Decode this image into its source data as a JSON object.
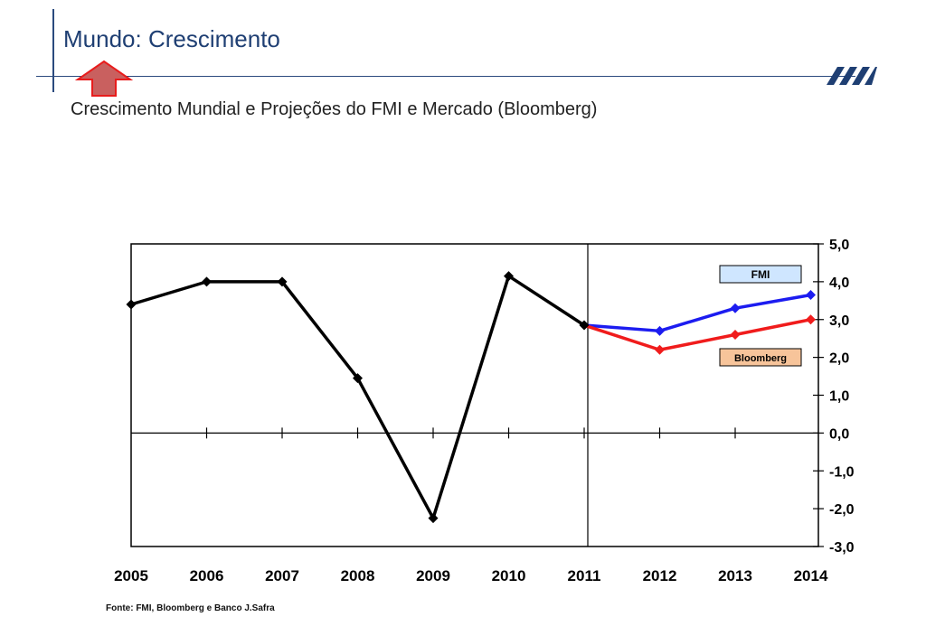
{
  "header": {
    "title": "Mundo: Crescimento",
    "subtitle": "Crescimento Mundial e Projeções do FMI e Mercado (Bloomberg)"
  },
  "colors": {
    "brand_blue": "#1f3f73",
    "historical": "#000000",
    "fmi": "#1c1cf0",
    "bloomberg": "#f01c1c",
    "fmi_label_bg": "#cfe6ff",
    "bloomberg_label_bg": "#f7c49a",
    "arrow_fill": "#c9605f",
    "arrow_stroke": "#e81c1c"
  },
  "icons": {
    "arrow": "up-arrow-icon",
    "logo": "safra-stripes-logo-icon"
  },
  "chart_data": {
    "type": "line",
    "x": [
      "2005",
      "2006",
      "2007",
      "2008",
      "2009",
      "2010",
      "2011",
      "2012",
      "2013",
      "2014"
    ],
    "ylim": [
      -3.0,
      5.0
    ],
    "yticks": [
      "5,0",
      "4,0",
      "3,0",
      "2,0",
      "1,0",
      "0,0",
      "-1,0",
      "-2,0",
      "-3,0"
    ],
    "y_axis_position": "right",
    "grid": false,
    "series": [
      {
        "key": "historico",
        "x": [
          "2005",
          "2006",
          "2007",
          "2008",
          "2009",
          "2010",
          "2011"
        ],
        "values": [
          3.4,
          4.0,
          4.0,
          1.45,
          -2.25,
          4.15,
          2.85
        ]
      },
      {
        "key": "fmi",
        "name": "FMI",
        "x": [
          "2011",
          "2012",
          "2013",
          "2014"
        ],
        "values": [
          2.85,
          2.7,
          3.3,
          3.65
        ]
      },
      {
        "key": "bloomberg",
        "name": "Bloomberg",
        "x": [
          "2011",
          "2012",
          "2013",
          "2014"
        ],
        "values": [
          2.85,
          2.2,
          2.6,
          3.0
        ]
      }
    ]
  },
  "footer": {
    "source": "Fonte: FMI, Bloomberg e Banco J.Safra"
  }
}
